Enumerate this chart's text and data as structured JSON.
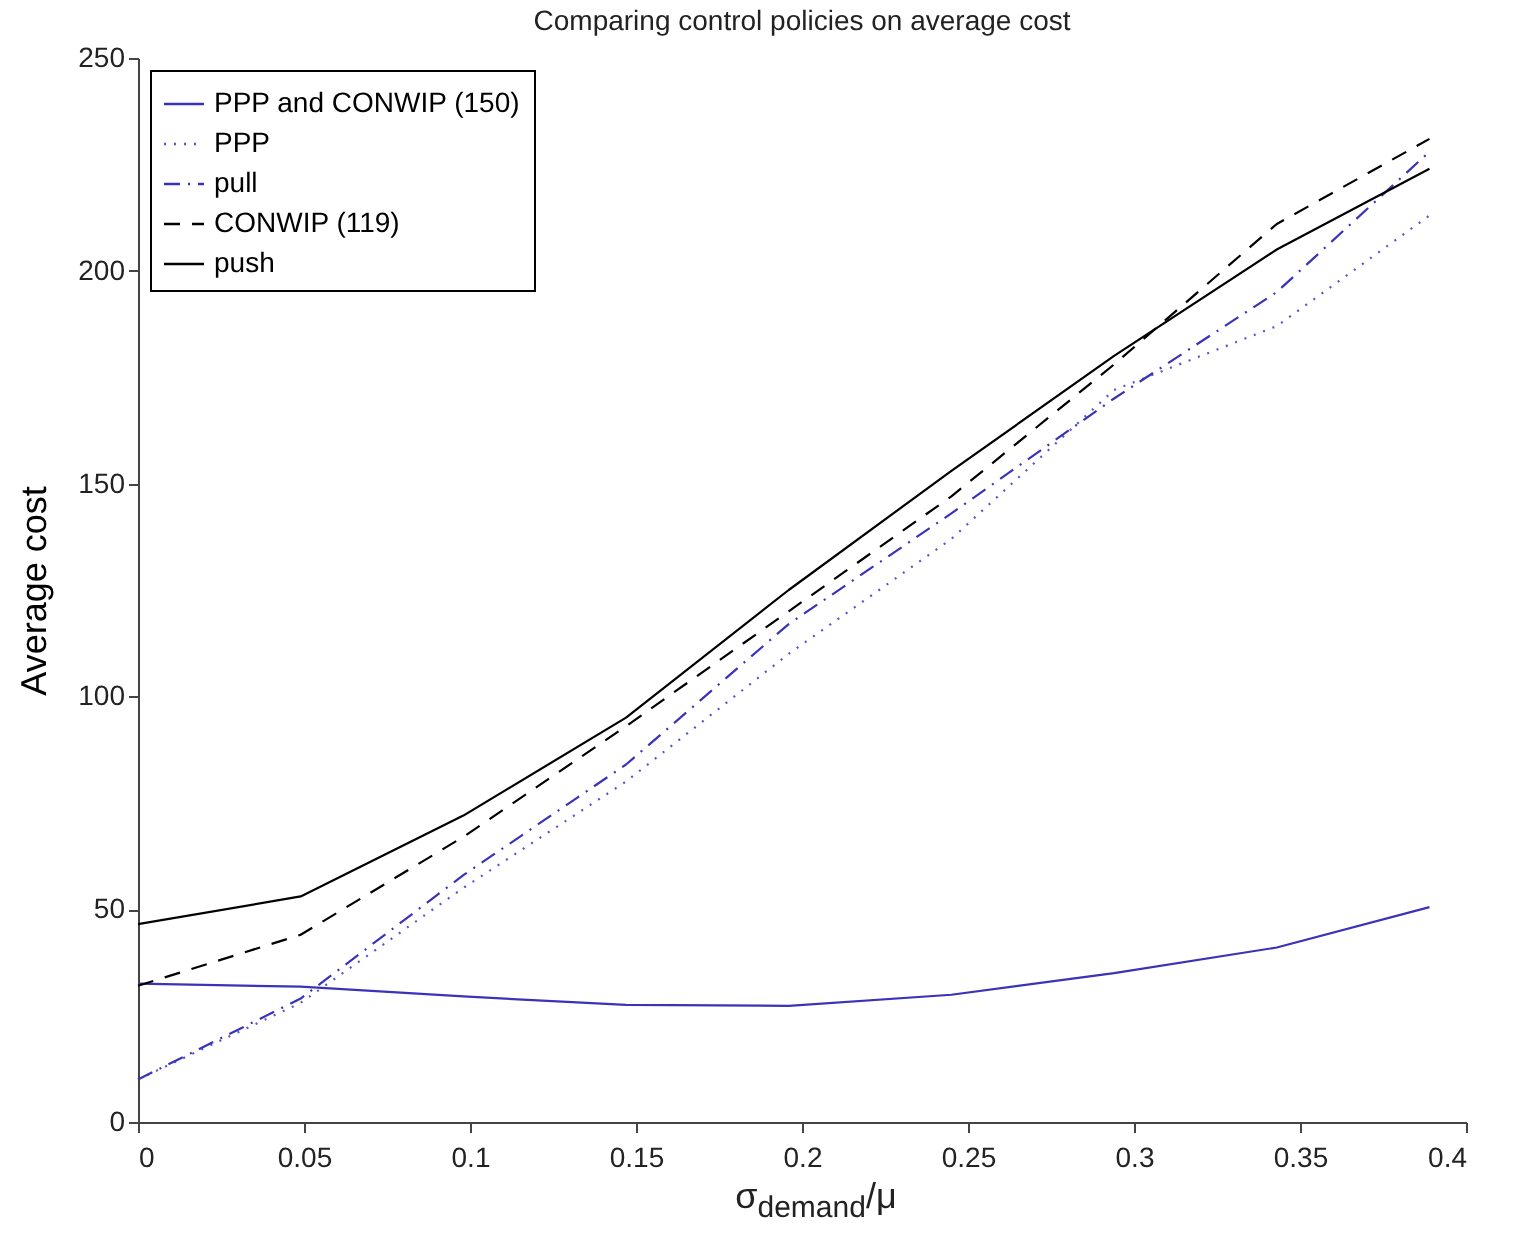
{
  "chart_data": {
    "type": "line",
    "title": "Comparing control policies on average cost",
    "xlabel": "σ$_{demand}$/μ",
    "ylabel": "Average cost",
    "x": [
      0,
      0.049,
      0.098,
      0.147,
      0.196,
      0.245,
      0.294,
      0.343,
      0.389
    ],
    "series": [
      {
        "name": "PPP and CONWIP (150)",
        "color": "#3a32b8",
        "line_style": "solid",
        "values": [
          32.5,
          31.8,
          29.5,
          27.5,
          27.3,
          29.9,
          35,
          41,
          50.5
        ]
      },
      {
        "name": "PPP",
        "color": "#5a52d0",
        "line_style": "dotted",
        "values": [
          10,
          28,
          55,
          80,
          110,
          137,
          172,
          187,
          213
        ]
      },
      {
        "name": "pull",
        "color": "#3a32b8",
        "line_style": "dashdot",
        "values": [
          10,
          29,
          58,
          84,
          117,
          143,
          170,
          195,
          228
        ]
      },
      {
        "name": "CONWIP (119)",
        "color": "#000000",
        "line_style": "dashed",
        "values": [
          32,
          44,
          67,
          93,
          120,
          147,
          178,
          211,
          231
        ]
      },
      {
        "name": "push",
        "color": "#000000",
        "line_style": "solid",
        "values": [
          46.5,
          53,
          72,
          95,
          125,
          153,
          180,
          205,
          224
        ]
      }
    ],
    "xlim": [
      0,
      0.4
    ],
    "xticks": [
      0,
      0.05,
      0.1,
      0.15,
      0.2,
      0.25,
      0.3,
      0.35,
      0.4
    ],
    "ylim": [
      0,
      250
    ],
    "yticks": [
      0,
      50,
      100,
      150,
      200,
      250
    ],
    "legend": "top left",
    "marker": "none"
  }
}
